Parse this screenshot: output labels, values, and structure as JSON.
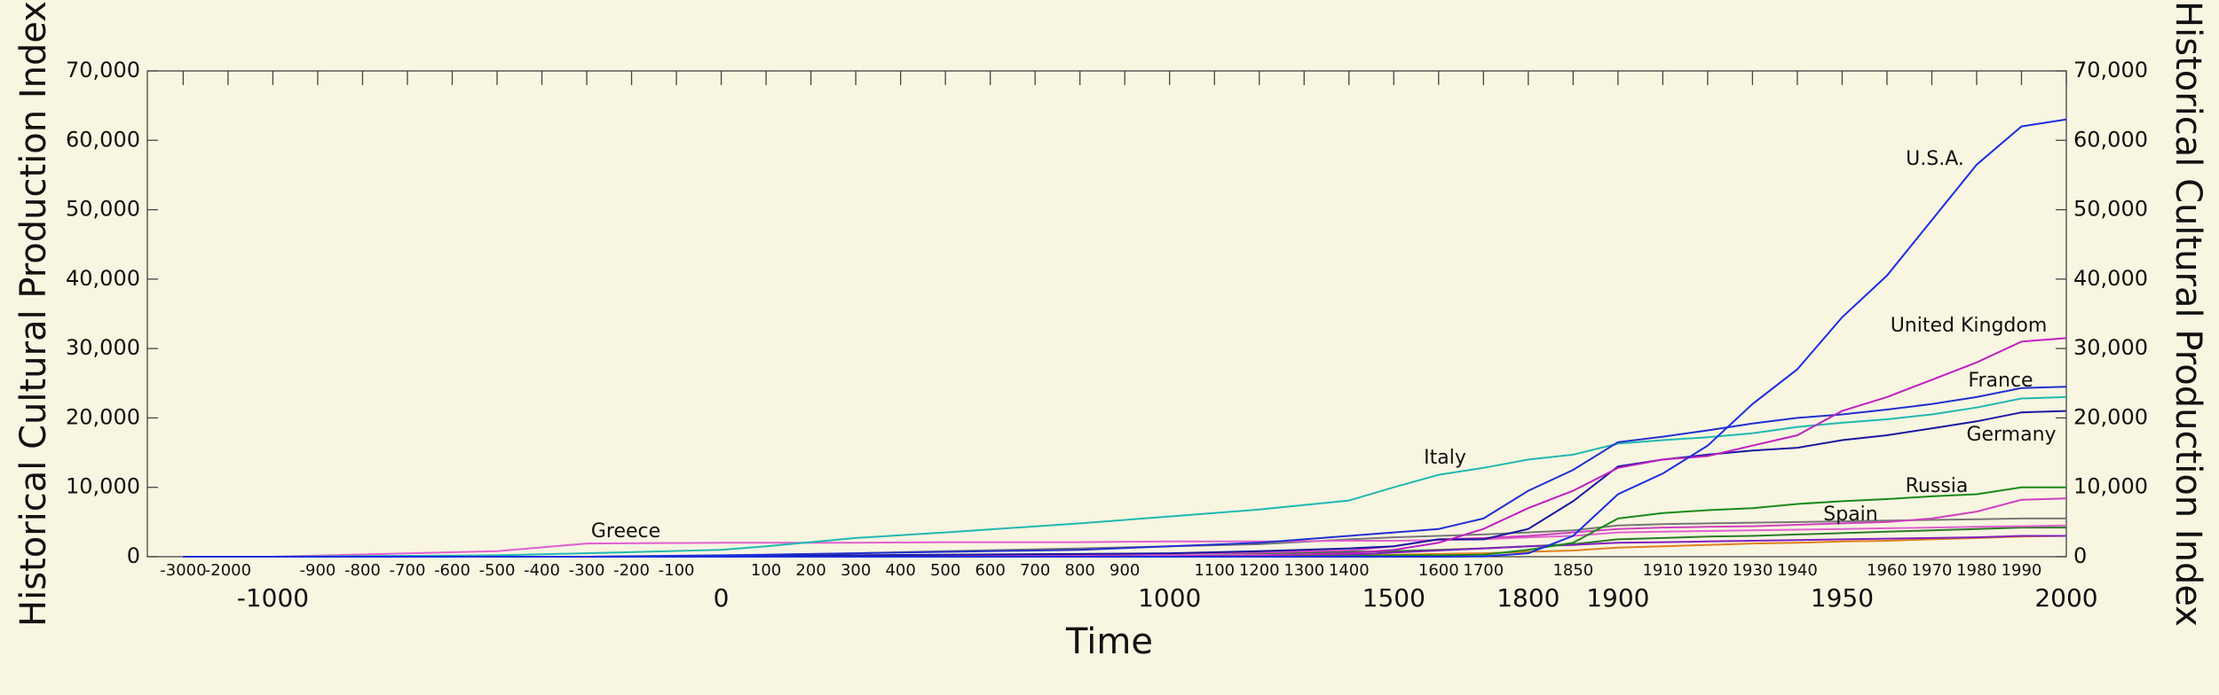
{
  "chart_data": {
    "type": "line",
    "x_label": "Time",
    "y_label": "Historical Cultural Production Index",
    "y2_label": "Historical Cultural Production Index",
    "xlim": [
      -3000,
      2000
    ],
    "ylim": [
      0,
      70000
    ],
    "y2lim": [
      0,
      70000
    ],
    "xticks": [
      -3000,
      -2000,
      -900,
      -800,
      -700,
      -600,
      -500,
      -400,
      -300,
      -200,
      -100,
      100,
      200,
      300,
      400,
      500,
      600,
      700,
      800,
      900,
      1100,
      1200,
      1300,
      1400,
      1600,
      1700,
      1850,
      1910,
      1920,
      1930,
      1940,
      1960,
      1970,
      1980,
      1990
    ],
    "xticks_major": [
      -1000,
      0,
      1000,
      1500,
      1800,
      1900,
      1950,
      2000
    ],
    "yticks": [
      0,
      {
        "value": 10000,
        "label": "10,000"
      },
      {
        "value": 20000,
        "label": "20,000"
      },
      {
        "value": 30000,
        "label": "30,000"
      },
      {
        "value": 40000,
        "label": "40,000"
      },
      {
        "value": 50000,
        "label": "50,000"
      },
      {
        "value": 60000,
        "label": "60,000"
      },
      {
        "value": 70000,
        "label": "70,000"
      }
    ],
    "y2ticks": [
      0,
      {
        "value": 10000,
        "label": "10,000"
      },
      {
        "value": 20000,
        "label": "20,000"
      },
      {
        "value": 30000,
        "label": "30,000"
      },
      {
        "value": 40000,
        "label": "40,000"
      },
      {
        "value": 50000,
        "label": "50,000"
      },
      {
        "value": 60000,
        "label": "60,000"
      },
      {
        "value": 70000,
        "label": "70,000"
      }
    ],
    "x": [
      -3000,
      -1000,
      -500,
      -300,
      0,
      100,
      300,
      500,
      800,
      1000,
      1200,
      1400,
      1500,
      1600,
      1700,
      1800,
      1850,
      1900,
      1910,
      1920,
      1930,
      1940,
      1950,
      1960,
      1970,
      1980,
      1990,
      2000
    ],
    "series": [
      {
        "color": "#777777",
        "values": [
          0,
          0,
          0,
          0,
          100,
          200,
          500,
          800,
          1200,
          1500,
          1800,
          2500,
          2800,
          3000,
          3200,
          3500,
          3800,
          4500,
          4700,
          4800,
          4900,
          5000,
          5100,
          5200,
          5300,
          5400,
          5500,
          5500
        ]
      },
      {
        "color": "#2a7a2a",
        "values": [
          0,
          0,
          0,
          0,
          0,
          0,
          100,
          200,
          300,
          400,
          500,
          700,
          800,
          1000,
          1200,
          1500,
          1800,
          2500,
          2700,
          2900,
          3000,
          3200,
          3400,
          3600,
          3800,
          4000,
          4200,
          4200
        ]
      },
      {
        "color": "#e08020",
        "values": [
          0,
          0,
          0,
          0,
          0,
          0,
          0,
          0,
          0,
          50,
          100,
          200,
          300,
          400,
          500,
          700,
          900,
          1300,
          1500,
          1700,
          1900,
          2000,
          2200,
          2300,
          2500,
          2700,
          2900,
          3000
        ]
      },
      {
        "color": "#8020c0",
        "values": [
          0,
          0,
          0,
          0,
          0,
          0,
          0,
          0,
          0,
          0,
          100,
          300,
          600,
          900,
          1200,
          1500,
          1700,
          2000,
          2100,
          2200,
          2300,
          2400,
          2500,
          2600,
          2700,
          2800,
          3000,
          3000
        ]
      },
      {
        "name": "Greece",
        "color": "#e060d0",
        "values": [
          0,
          0,
          800,
          1900,
          2000,
          2000,
          2000,
          2100,
          2100,
          2200,
          2200,
          2300,
          2300,
          2400,
          2500,
          2800,
          3000,
          3500,
          3600,
          3700,
          3800,
          3900,
          4000,
          4100,
          4200,
          4300,
          4400,
          4500
        ]
      },
      {
        "name": "Spain",
        "color": "#d040c0",
        "values": [
          0,
          0,
          0,
          0,
          0,
          50,
          100,
          200,
          300,
          400,
          600,
          900,
          1500,
          2500,
          2700,
          3000,
          3500,
          4000,
          4200,
          4300,
          4400,
          4600,
          4800,
          5000,
          5500,
          6500,
          8200,
          8400
        ]
      },
      {
        "name": "Russia",
        "color": "#1a8a1a",
        "values": [
          0,
          0,
          0,
          0,
          0,
          0,
          0,
          0,
          0,
          0,
          50,
          100,
          200,
          200,
          300,
          1000,
          2000,
          5500,
          6300,
          6700,
          7000,
          7600,
          8000,
          8300,
          8700,
          9000,
          10000,
          10000
        ]
      },
      {
        "name": "Italy",
        "color": "#20b8b0",
        "values": [
          0,
          0,
          200,
          500,
          1000,
          1500,
          2700,
          3500,
          4800,
          5800,
          6800,
          8100,
          10000,
          11800,
          12800,
          14000,
          14700,
          16300,
          16800,
          17200,
          17800,
          18700,
          19300,
          19800,
          20500,
          21500,
          22800,
          23000
        ]
      },
      {
        "name": "Germany",
        "color": "#1818a0",
        "values": [
          0,
          0,
          0,
          0,
          0,
          100,
          200,
          300,
          400,
          500,
          800,
          1200,
          1500,
          2500,
          2500,
          4000,
          8000,
          13000,
          14000,
          14700,
          15300,
          15700,
          16800,
          17500,
          18500,
          19500,
          20800,
          21000
        ]
      },
      {
        "name": "France",
        "color": "#2030d0",
        "values": [
          0,
          0,
          0,
          0,
          200,
          300,
          500,
          700,
          1000,
          1500,
          2000,
          3000,
          3500,
          4000,
          5500,
          9500,
          12500,
          16500,
          17300,
          18200,
          19200,
          20000,
          20500,
          21200,
          22000,
          23000,
          24300,
          24500
        ]
      },
      {
        "name": "United Kingdom",
        "color": "#c020c0",
        "values": [
          0,
          0,
          0,
          0,
          0,
          0,
          0,
          0,
          50,
          100,
          200,
          500,
          1000,
          2000,
          4000,
          7000,
          9500,
          12800,
          14000,
          14500,
          16000,
          17500,
          21000,
          23000,
          25500,
          28000,
          31000,
          31500
        ]
      },
      {
        "name": "U.S.A.",
        "color": "#1a2ee0",
        "values": [
          0,
          0,
          0,
          0,
          0,
          0,
          0,
          0,
          0,
          0,
          0,
          0,
          0,
          0,
          50,
          500,
          3000,
          9000,
          12000,
          16000,
          22000,
          27000,
          34500,
          40500,
          48500,
          56500,
          62000,
          63000
        ]
      }
    ]
  }
}
